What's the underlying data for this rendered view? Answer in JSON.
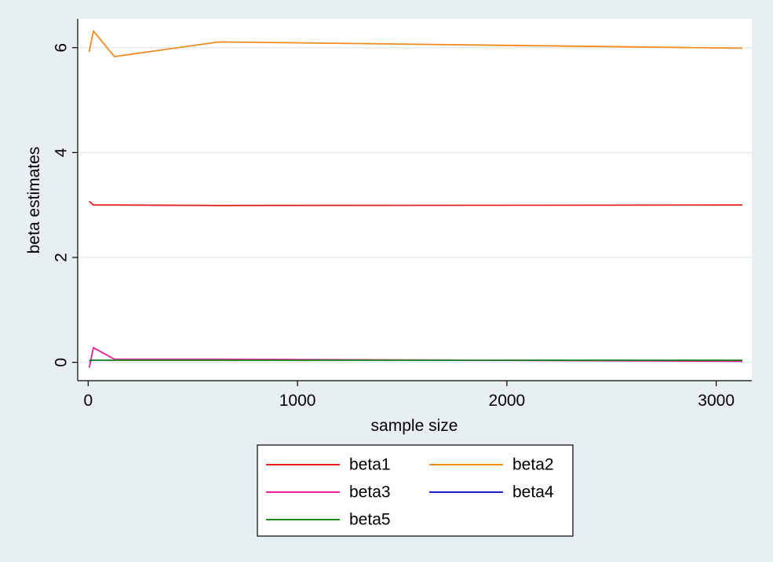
{
  "chart_data": {
    "type": "line",
    "title": "",
    "xlabel": "sample size",
    "ylabel": "beta estimates",
    "xlim": [
      -50,
      3170
    ],
    "ylim": [
      -0.35,
      6.55
    ],
    "xticks": [
      0,
      1000,
      2000,
      3000
    ],
    "yticks": [
      0,
      2,
      4,
      6
    ],
    "grid": true,
    "legend_position": "bottom",
    "background": "#e8eff2",
    "plot_background": "#ffffff",
    "series": [
      {
        "name": "beta1",
        "color": "#e8231e",
        "x": [
          5,
          25,
          125,
          625,
          3125
        ],
        "y": [
          3.07,
          3.0,
          3.0,
          2.99,
          3.0
        ]
      },
      {
        "name": "beta2",
        "color": "#f58a1f",
        "x": [
          5,
          25,
          125,
          625,
          3125
        ],
        "y": [
          5.92,
          6.32,
          5.83,
          6.11,
          5.99
        ]
      },
      {
        "name": "beta3",
        "color": "#e8219a",
        "x": [
          5,
          25,
          125,
          625,
          3125
        ],
        "y": [
          -0.1,
          0.28,
          0.06,
          0.06,
          0.02
        ]
      },
      {
        "name": "beta4",
        "color": "#1f1fcf",
        "x": [
          5,
          25,
          125,
          625,
          3125
        ],
        "y": [
          0.03,
          0.04,
          0.04,
          0.04,
          0.04
        ]
      },
      {
        "name": "beta5",
        "color": "#1e8a1e",
        "x": [
          5,
          25,
          125,
          625,
          3125
        ],
        "y": [
          0.04,
          0.04,
          0.04,
          0.04,
          0.04
        ]
      }
    ]
  }
}
